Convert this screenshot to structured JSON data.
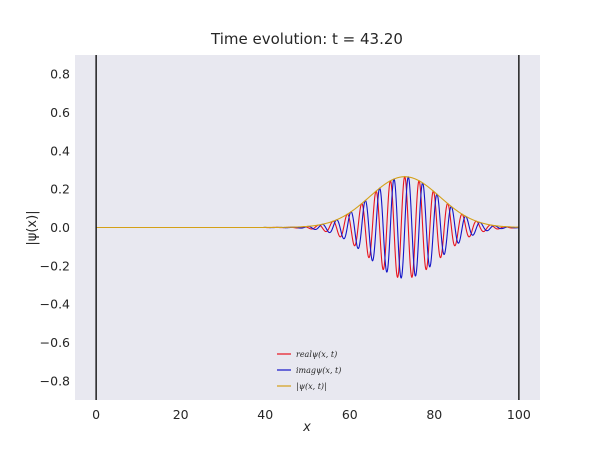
{
  "chart_data": {
    "type": "line",
    "title": "Time evolution: t = 43.20",
    "xlabel": "x",
    "ylabel": "|ψ(x)|",
    "xlim": [
      -5,
      105
    ],
    "ylim": [
      -0.9,
      0.9
    ],
    "xticks": [
      0,
      20,
      40,
      60,
      80,
      100
    ],
    "xtick_labels": [
      "0",
      "20",
      "40",
      "60",
      "80",
      "100"
    ],
    "yticks": [
      0.8,
      0.6,
      0.4,
      0.2,
      0.0,
      -0.2,
      -0.4,
      -0.6,
      -0.8
    ],
    "ytick_labels": [
      "0.8",
      "0.6",
      "0.4",
      "0.2",
      "0.0",
      "−0.2",
      "−0.4",
      "−0.6",
      "−0.8"
    ],
    "grid": false,
    "background": "#e8e8f0",
    "walls": [
      0,
      100
    ],
    "legend_position": "lower-center",
    "series": [
      {
        "name": "realψ(x, t)",
        "color": "#e8141e",
        "type": "cosine-modulated-gaussian"
      },
      {
        "name": "imagψ(x, t)",
        "color": "#1414c8",
        "type": "sine-modulated-gaussian"
      },
      {
        "name": "|ψ(x, t)|",
        "color": "#d4a017",
        "type": "gaussian-envelope"
      }
    ],
    "packet": {
      "center": 73,
      "amplitude": 0.265,
      "sigma": 8.3,
      "wavelength": 3.4,
      "range": [
        0,
        100
      ]
    }
  }
}
